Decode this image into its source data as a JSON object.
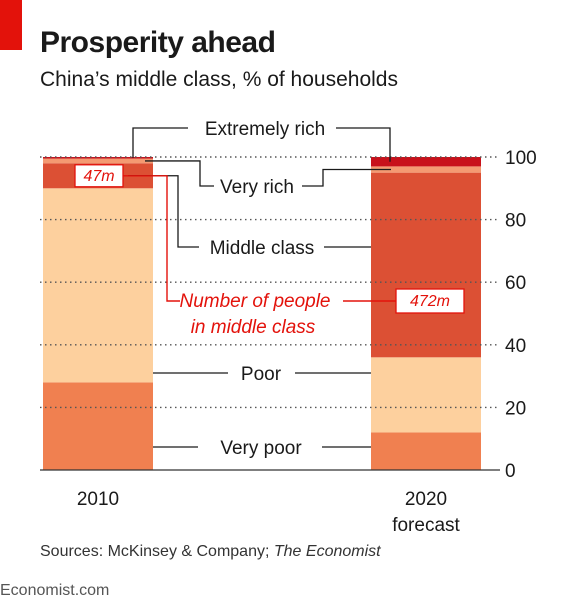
{
  "title": "Prosperity ahead",
  "subtitle": "China’s middle class, % of households",
  "sources": {
    "prefix": "Sources: McKinsey & Company; ",
    "publication": "The Economist"
  },
  "footer": "Economist.com",
  "colors": {
    "very_poor": "#f08050",
    "poor": "#fdd09e",
    "middle_class": "#dc5034",
    "very_rich": "#f49a72",
    "extremely_rich": "#c8111b",
    "callout_red": "#e3120b",
    "grid": "#555555"
  },
  "chart_data": {
    "type": "bar",
    "stacked": true,
    "categories": [
      "2010",
      "2020\nforecast"
    ],
    "series": [
      {
        "name": "Very poor",
        "values": [
          28,
          12
        ]
      },
      {
        "name": "Poor",
        "values": [
          62,
          24
        ]
      },
      {
        "name": "Middle class",
        "values": [
          8,
          59
        ]
      },
      {
        "name": "Very rich",
        "values": [
          1.5,
          2
        ]
      },
      {
        "name": "Extremely rich",
        "values": [
          0.5,
          3
        ]
      }
    ],
    "callouts": {
      "label": "Number of people\nin middle class",
      "values": [
        "47m",
        "472m"
      ]
    },
    "ylim": [
      0,
      100
    ],
    "yticks": [
      0,
      20,
      40,
      60,
      80,
      100
    ],
    "grid": true,
    "legend": "inline labels between bars"
  }
}
